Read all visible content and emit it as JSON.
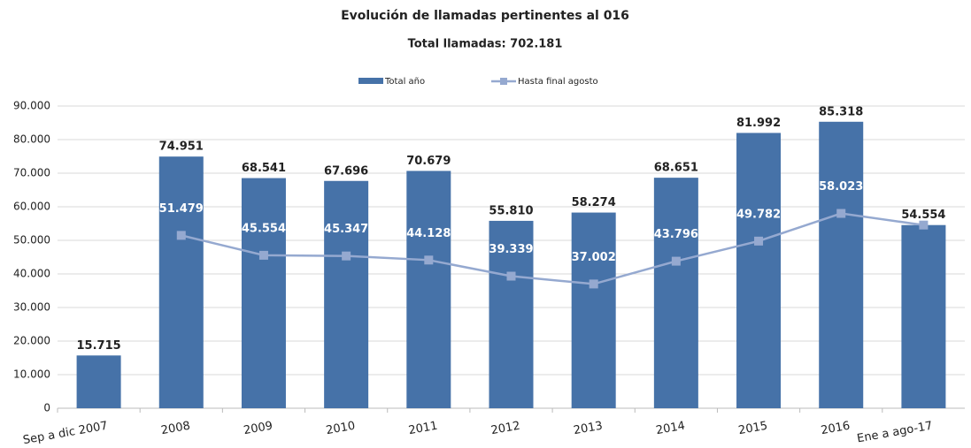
{
  "chart_data": {
    "type": "bar",
    "title": "Evolución de llamadas pertinentes al 016",
    "subtitle": "Total llamadas: 702.181",
    "categories": [
      "Sep a dic 2007",
      "2008",
      "2009",
      "2010",
      "2011",
      "2012",
      "2013",
      "2014",
      "2015",
      "2016",
      "Ene a ago-17"
    ],
    "series": [
      {
        "name": "Total año",
        "type": "bar",
        "color": "#4672a8",
        "values": [
          15715,
          74951,
          68541,
          67696,
          70679,
          55810,
          58274,
          68651,
          81992,
          85318,
          54554
        ],
        "value_labels": [
          "15.715",
          "74.951",
          "68.541",
          "67.696",
          "70.679",
          "55.810",
          "58.274",
          "68.651",
          "81.992",
          "85.318",
          "54.554"
        ]
      },
      {
        "name": "Hasta final agosto",
        "type": "line",
        "color": "#95a9d0",
        "values": [
          null,
          51479,
          45554,
          45347,
          44128,
          39339,
          37002,
          43796,
          49782,
          58023,
          54554
        ],
        "value_labels": [
          null,
          "51.479",
          "45.554",
          "45.347",
          "44.128",
          "39.339",
          "37.002",
          "43.796",
          "49.782",
          "58.023",
          null
        ]
      }
    ],
    "ylim": [
      0,
      90000
    ],
    "yticks": [
      0,
      {
        "value": 10000,
        "label": "10.000"
      },
      {
        "value": 20000,
        "label": "20.000"
      },
      {
        "value": 30000,
        "label": "30.000"
      },
      {
        "value": 40000,
        "label": "40.000"
      },
      {
        "value": 50000,
        "label": "50.000"
      },
      {
        "value": 60000,
        "label": "60.000"
      },
      {
        "value": 70000,
        "label": "70.000"
      },
      {
        "value": 80000,
        "label": "80.000"
      },
      {
        "value": 90000,
        "label": "90.000"
      }
    ],
    "grid": true,
    "legend": "top"
  }
}
